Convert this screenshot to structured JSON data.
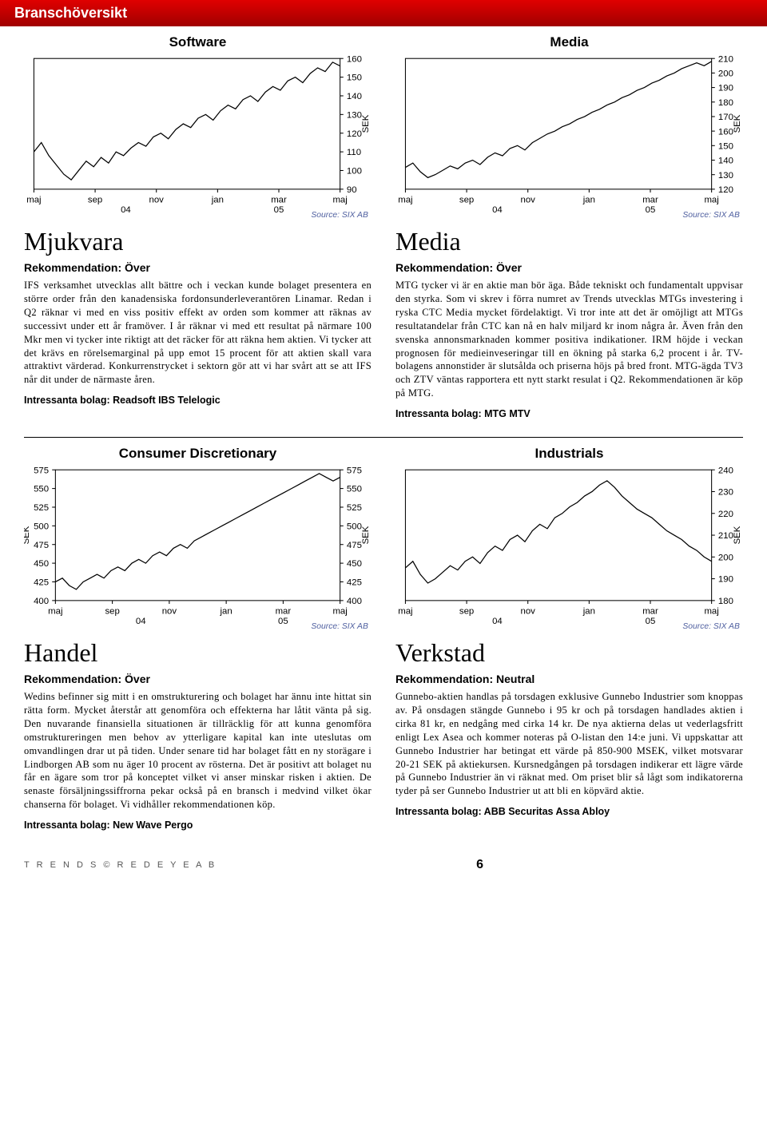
{
  "header": {
    "title": "Branschöversikt"
  },
  "footer": {
    "left": "T R E N D S   ©   R E D E Y E   A B",
    "page": "6"
  },
  "sections": {
    "mjukvara": {
      "chart_title": "Software",
      "section_title": "Mjukvara",
      "rek": "Rekommendation: Över",
      "body": "IFS verksamhet utvecklas allt bättre och i veckan kunde bolaget presentera en större order från den kanadensiska fordonsunderleverantören Linamar. Redan i Q2 räknar vi med en viss positiv effekt av orden som kommer att räknas av successivt under ett år framöver. I år räknar vi med ett resultat på närmare 100 Mkr men vi tycker inte riktigt att det räcker för att räkna hem aktien. Vi tycker att det krävs en rörelsemarginal på upp emot 15 procent för att aktien skall vara attraktivt värderad. Konkurrenstrycket i sektorn gör att vi har svårt att se att IFS når dit under de närmaste åren.",
      "intressanta": "Intressanta bolag: Readsoft IBS Telelogic"
    },
    "media": {
      "chart_title": "Media",
      "section_title": "Media",
      "rek": "Rekommendation: Över",
      "body": "MTG tycker vi är en aktie man bör äga. Både tekniskt och fundamentalt uppvisar den styrka. Som vi skrev i förra numret av Trends utvecklas MTGs investering i ryska CTC Media mycket fördelaktigt. Vi tror inte att det är omöjligt att MTGs resultatandelar från CTC kan nå en halv miljard kr inom några år. Även från den svenska annonsmarknaden kommer positiva indikationer. IRM höjde i veckan prognosen för medieinveseringar till en ökning på starka 6,2 procent i år. TV-bolagens annonstider är slutsålda och priserna höjs på bred front. MTG-ägda TV3 och ZTV väntas rapportera ett nytt starkt resulat i Q2. Rekommendationen är köp på MTG.",
      "intressanta": "Intressanta bolag: MTG MTV"
    },
    "handel": {
      "chart_title": "Consumer Discretionary",
      "section_title": "Handel",
      "rek": "Rekommendation: Över",
      "body": "Wedins befinner sig mitt i en omstrukturering och bolaget har ännu inte hittat sin rätta form. Mycket återstår att genomföra och effekterna har låtit vänta på sig. Den nuvarande finansiella situationen är tillräcklig för att kunna genomföra omstruktureringen men behov av ytterligare kapital kan inte uteslutas om omvandlingen drar ut på tiden. Under senare tid har bolaget fått en ny storägare i Lindborgen AB som nu äger 10 procent av rösterna. Det är positivt att bolaget nu får en ägare som tror på konceptet vilket vi anser minskar risken i aktien. De senaste försäljningssiffrorna pekar också på en bransch i medvind vilket ökar chanserna för bolaget. Vi vidhåller rekommendationen köp.",
      "intressanta": "Intressanta bolag: New Wave  Pergo"
    },
    "verkstad": {
      "chart_title": "Industrials",
      "section_title": "Verkstad",
      "rek": "Rekommendation: Neutral",
      "body": "Gunnebo-aktien handlas på torsdagen exklusive Gunnebo Industrier som knoppas av. På onsdagen stängde Gunnebo i 95 kr och på torsdagen handlades aktien i cirka 81 kr, en nedgång med cirka 14 kr. De nya aktierna delas ut vederlagsfritt enligt Lex Asea och kommer noteras på O-listan den 14:e juni. Vi uppskattar att Gunnebo Industrier har betingat ett värde på 850-900 MSEK, vilket motsvarar 20-21 SEK på aktiekursen. Kursnedgången på torsdagen indikerar ett lägre värde på Gunnebo Industrier än vi räknat med. Om priset blir så lågt som indikatorerna tyder på ser Gunnebo Industrier ut att bli en köpvärd aktie.",
      "intressanta": "Intressanta bolag: ABB Securitas Assa Abloy"
    }
  },
  "charts": {
    "software": {
      "type": "line",
      "x_labels": [
        "maj",
        "sep",
        "nov",
        "jan",
        "mar",
        "maj"
      ],
      "x_sub": [
        "04",
        "05"
      ],
      "ymin": 90,
      "ymax": 160,
      "ytick_step": 10,
      "yticks": [
        90,
        100,
        110,
        120,
        130,
        140,
        150,
        160
      ],
      "ylabel": "SEK",
      "source": "Source: SIX AB",
      "right_axis": true,
      "line_color": "#000000",
      "background": "#ffffff",
      "border_color": "#000000",
      "data": [
        110,
        115,
        108,
        103,
        98,
        95,
        100,
        105,
        102,
        107,
        104,
        110,
        108,
        112,
        115,
        113,
        118,
        120,
        117,
        122,
        125,
        123,
        128,
        130,
        127,
        132,
        135,
        133,
        138,
        140,
        137,
        142,
        145,
        143,
        148,
        150,
        147,
        152,
        155,
        153,
        158,
        156
      ]
    },
    "media": {
      "type": "line",
      "x_labels": [
        "maj",
        "sep",
        "nov",
        "jan",
        "mar",
        "maj"
      ],
      "x_sub": [
        "04",
        "05"
      ],
      "ymin": 120,
      "ymax": 210,
      "ytick_step": 10,
      "yticks": [
        120,
        130,
        140,
        150,
        160,
        170,
        180,
        190,
        200,
        210
      ],
      "ylabel": "SEK",
      "source": "Source: SIX AB",
      "right_axis": true,
      "line_color": "#000000",
      "background": "#ffffff",
      "border_color": "#000000",
      "data": [
        135,
        138,
        132,
        128,
        130,
        133,
        136,
        134,
        138,
        140,
        137,
        142,
        145,
        143,
        148,
        150,
        147,
        152,
        155,
        158,
        160,
        163,
        165,
        168,
        170,
        173,
        175,
        178,
        180,
        183,
        185,
        188,
        190,
        193,
        195,
        198,
        200,
        203,
        205,
        207,
        205,
        208
      ]
    },
    "consumer": {
      "type": "line",
      "x_labels": [
        "maj",
        "sep",
        "nov",
        "jan",
        "mar",
        "maj"
      ],
      "x_sub": [
        "04",
        "05"
      ],
      "ymin": 400,
      "ymax": 575,
      "ytick_step": 25,
      "yticks": [
        400,
        425,
        450,
        475,
        500,
        525,
        550,
        575
      ],
      "ylabel": "SEK",
      "source": "Source: SIX AB",
      "both_axes": true,
      "line_color": "#000000",
      "background": "#ffffff",
      "border_color": "#000000",
      "data": [
        425,
        430,
        420,
        415,
        425,
        430,
        435,
        430,
        440,
        445,
        440,
        450,
        455,
        450,
        460,
        465,
        460,
        470,
        475,
        470,
        480,
        485,
        490,
        495,
        500,
        505,
        510,
        515,
        520,
        525,
        530,
        535,
        540,
        545,
        550,
        555,
        560,
        565,
        570,
        565,
        560,
        565
      ]
    },
    "industrials": {
      "type": "line",
      "x_labels": [
        "maj",
        "sep",
        "nov",
        "jan",
        "mar",
        "maj"
      ],
      "x_sub": [
        "04",
        "05"
      ],
      "ymin": 180,
      "ymax": 240,
      "ytick_step": 10,
      "yticks": [
        180,
        190,
        200,
        210,
        220,
        230,
        240
      ],
      "ylabel": "SEK",
      "source": "Source: SIX AB",
      "right_axis": true,
      "line_color": "#000000",
      "background": "#ffffff",
      "border_color": "#000000",
      "data": [
        195,
        198,
        192,
        188,
        190,
        193,
        196,
        194,
        198,
        200,
        197,
        202,
        205,
        203,
        208,
        210,
        207,
        212,
        215,
        213,
        218,
        220,
        223,
        225,
        228,
        230,
        233,
        235,
        232,
        228,
        225,
        222,
        220,
        218,
        215,
        212,
        210,
        208,
        205,
        203,
        200,
        198
      ]
    }
  }
}
